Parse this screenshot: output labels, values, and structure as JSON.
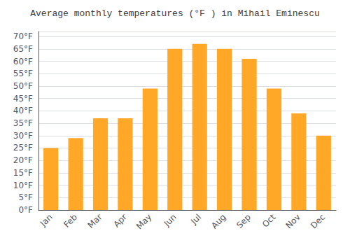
{
  "chart_data": {
    "type": "bar",
    "title": "Average monthly temperatures (°F ) in Mihail Eminescu",
    "categories": [
      "Jan",
      "Feb",
      "Mar",
      "Apr",
      "May",
      "Jun",
      "Jul",
      "Aug",
      "Sep",
      "Oct",
      "Nov",
      "Dec"
    ],
    "values": [
      25,
      29,
      37,
      37,
      49,
      65,
      67,
      65,
      61,
      49,
      39,
      30
    ],
    "color": "#FFA726",
    "ylim": [
      0,
      72
    ],
    "yticks": [
      {
        "value": 0,
        "label": "0°F"
      },
      {
        "value": 5,
        "label": "5°F"
      },
      {
        "value": 10,
        "label": "10°F"
      },
      {
        "value": 15,
        "label": "15°F"
      },
      {
        "value": 20,
        "label": "20°F"
      },
      {
        "value": 25,
        "label": "25°F"
      },
      {
        "value": 30,
        "label": "30°F"
      },
      {
        "value": 35,
        "label": "35°F"
      },
      {
        "value": 40,
        "label": "40°F"
      },
      {
        "value": 45,
        "label": "45°F"
      },
      {
        "value": 50,
        "label": "50°F"
      },
      {
        "value": 55,
        "label": "55°F"
      },
      {
        "value": 60,
        "label": "60°F"
      },
      {
        "value": 65,
        "label": "65°F"
      },
      {
        "value": 70,
        "label": "70°F"
      }
    ],
    "grid": true
  }
}
